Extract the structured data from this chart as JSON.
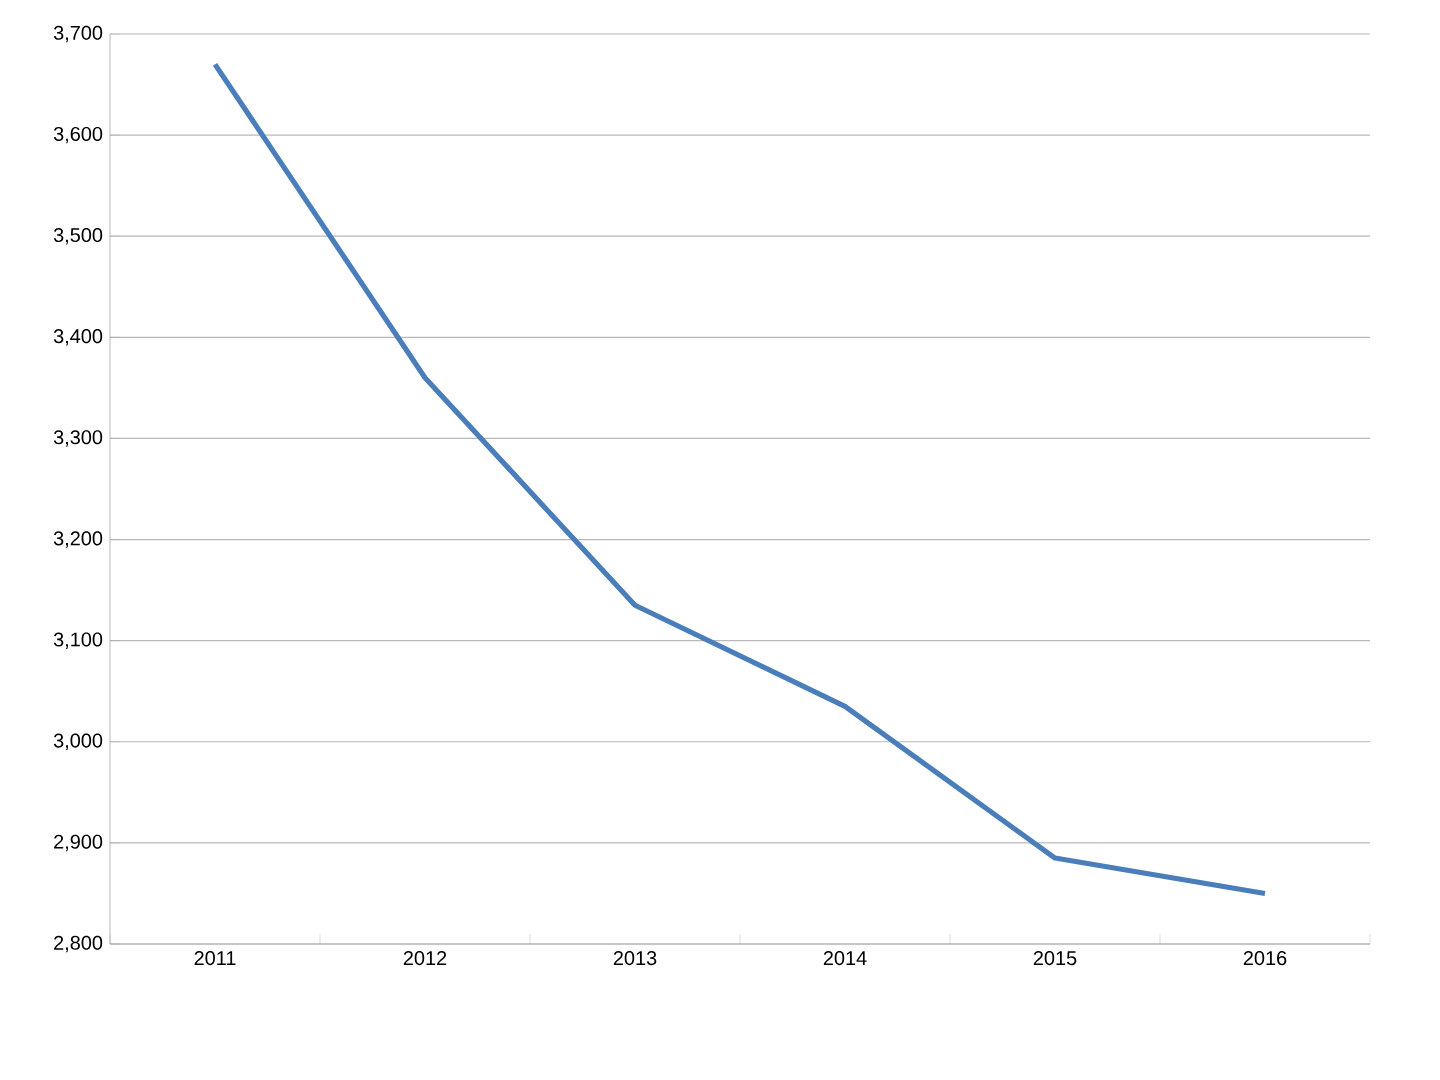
{
  "chart_data": {
    "type": "line",
    "categories": [
      "2011",
      "2012",
      "2013",
      "2014",
      "2015",
      "2016"
    ],
    "series": [
      {
        "color": "#4a7ebb",
        "values": [
          3670,
          3360,
          3135,
          3035,
          2885,
          2850
        ]
      }
    ],
    "ylim": [
      2800,
      3700
    ],
    "yticks": [
      {
        "value": 2800,
        "label": "2,800"
      },
      {
        "value": 2900,
        "label": "2,900"
      },
      {
        "value": 3000,
        "label": "3,000"
      },
      {
        "value": 3100,
        "label": "3,100"
      },
      {
        "value": 3200,
        "label": "3,200"
      },
      {
        "value": 3300,
        "label": "3,300"
      },
      {
        "value": 3400,
        "label": "3,400"
      },
      {
        "value": 3500,
        "label": "3,500"
      },
      {
        "value": 3600,
        "label": "3,600"
      },
      {
        "value": 3700,
        "label": "3,700"
      }
    ],
    "grid": "y",
    "marker": "none",
    "line_style": "solid"
  }
}
